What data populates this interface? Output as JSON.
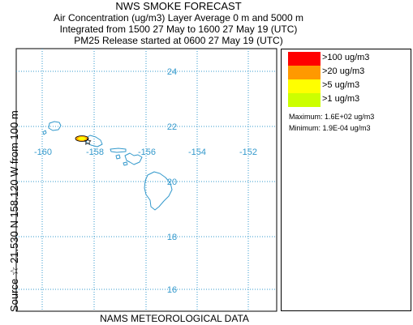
{
  "header": {
    "title": "NWS SMOKE FORECAST",
    "line2": "Air Concentration (ug/m3) Layer Average     0 m and  5000 m",
    "line3": "Integrated from 1500 27 May to 1600 27 May 19 (UTC)",
    "line4": "PM25 Release started at 0600 27 May 19 (UTC)"
  },
  "side_label": "Source ☆  21.530  N 158.120  W      from  100 m",
  "footer": "NAMS METEOROLOGICAL DATA",
  "map": {
    "lat_labels": [
      "24",
      "22",
      "20",
      "18",
      "16"
    ],
    "lon_labels": [
      "-160",
      "-158",
      "-156",
      "-154",
      "-152"
    ],
    "grid_color": "#3399cc",
    "coast_color": "#3399cc",
    "plume_colors": [
      "#ffff00",
      "#ffa500"
    ]
  },
  "legend": {
    "items": [
      {
        "label": ">100 ug/m3",
        "color": "#ff0000"
      },
      {
        "label": ">20 ug/m3",
        "color": "#ff9900"
      },
      {
        "label": ">5 ug/m3",
        "color": "#ffff00"
      },
      {
        "label": ">1 ug/m3",
        "color": "#ccff00"
      }
    ],
    "maximum": "Maximum: 1.6E+02 ug/m3",
    "minimum": "Minimum: 1.9E-04 ug/m3"
  }
}
